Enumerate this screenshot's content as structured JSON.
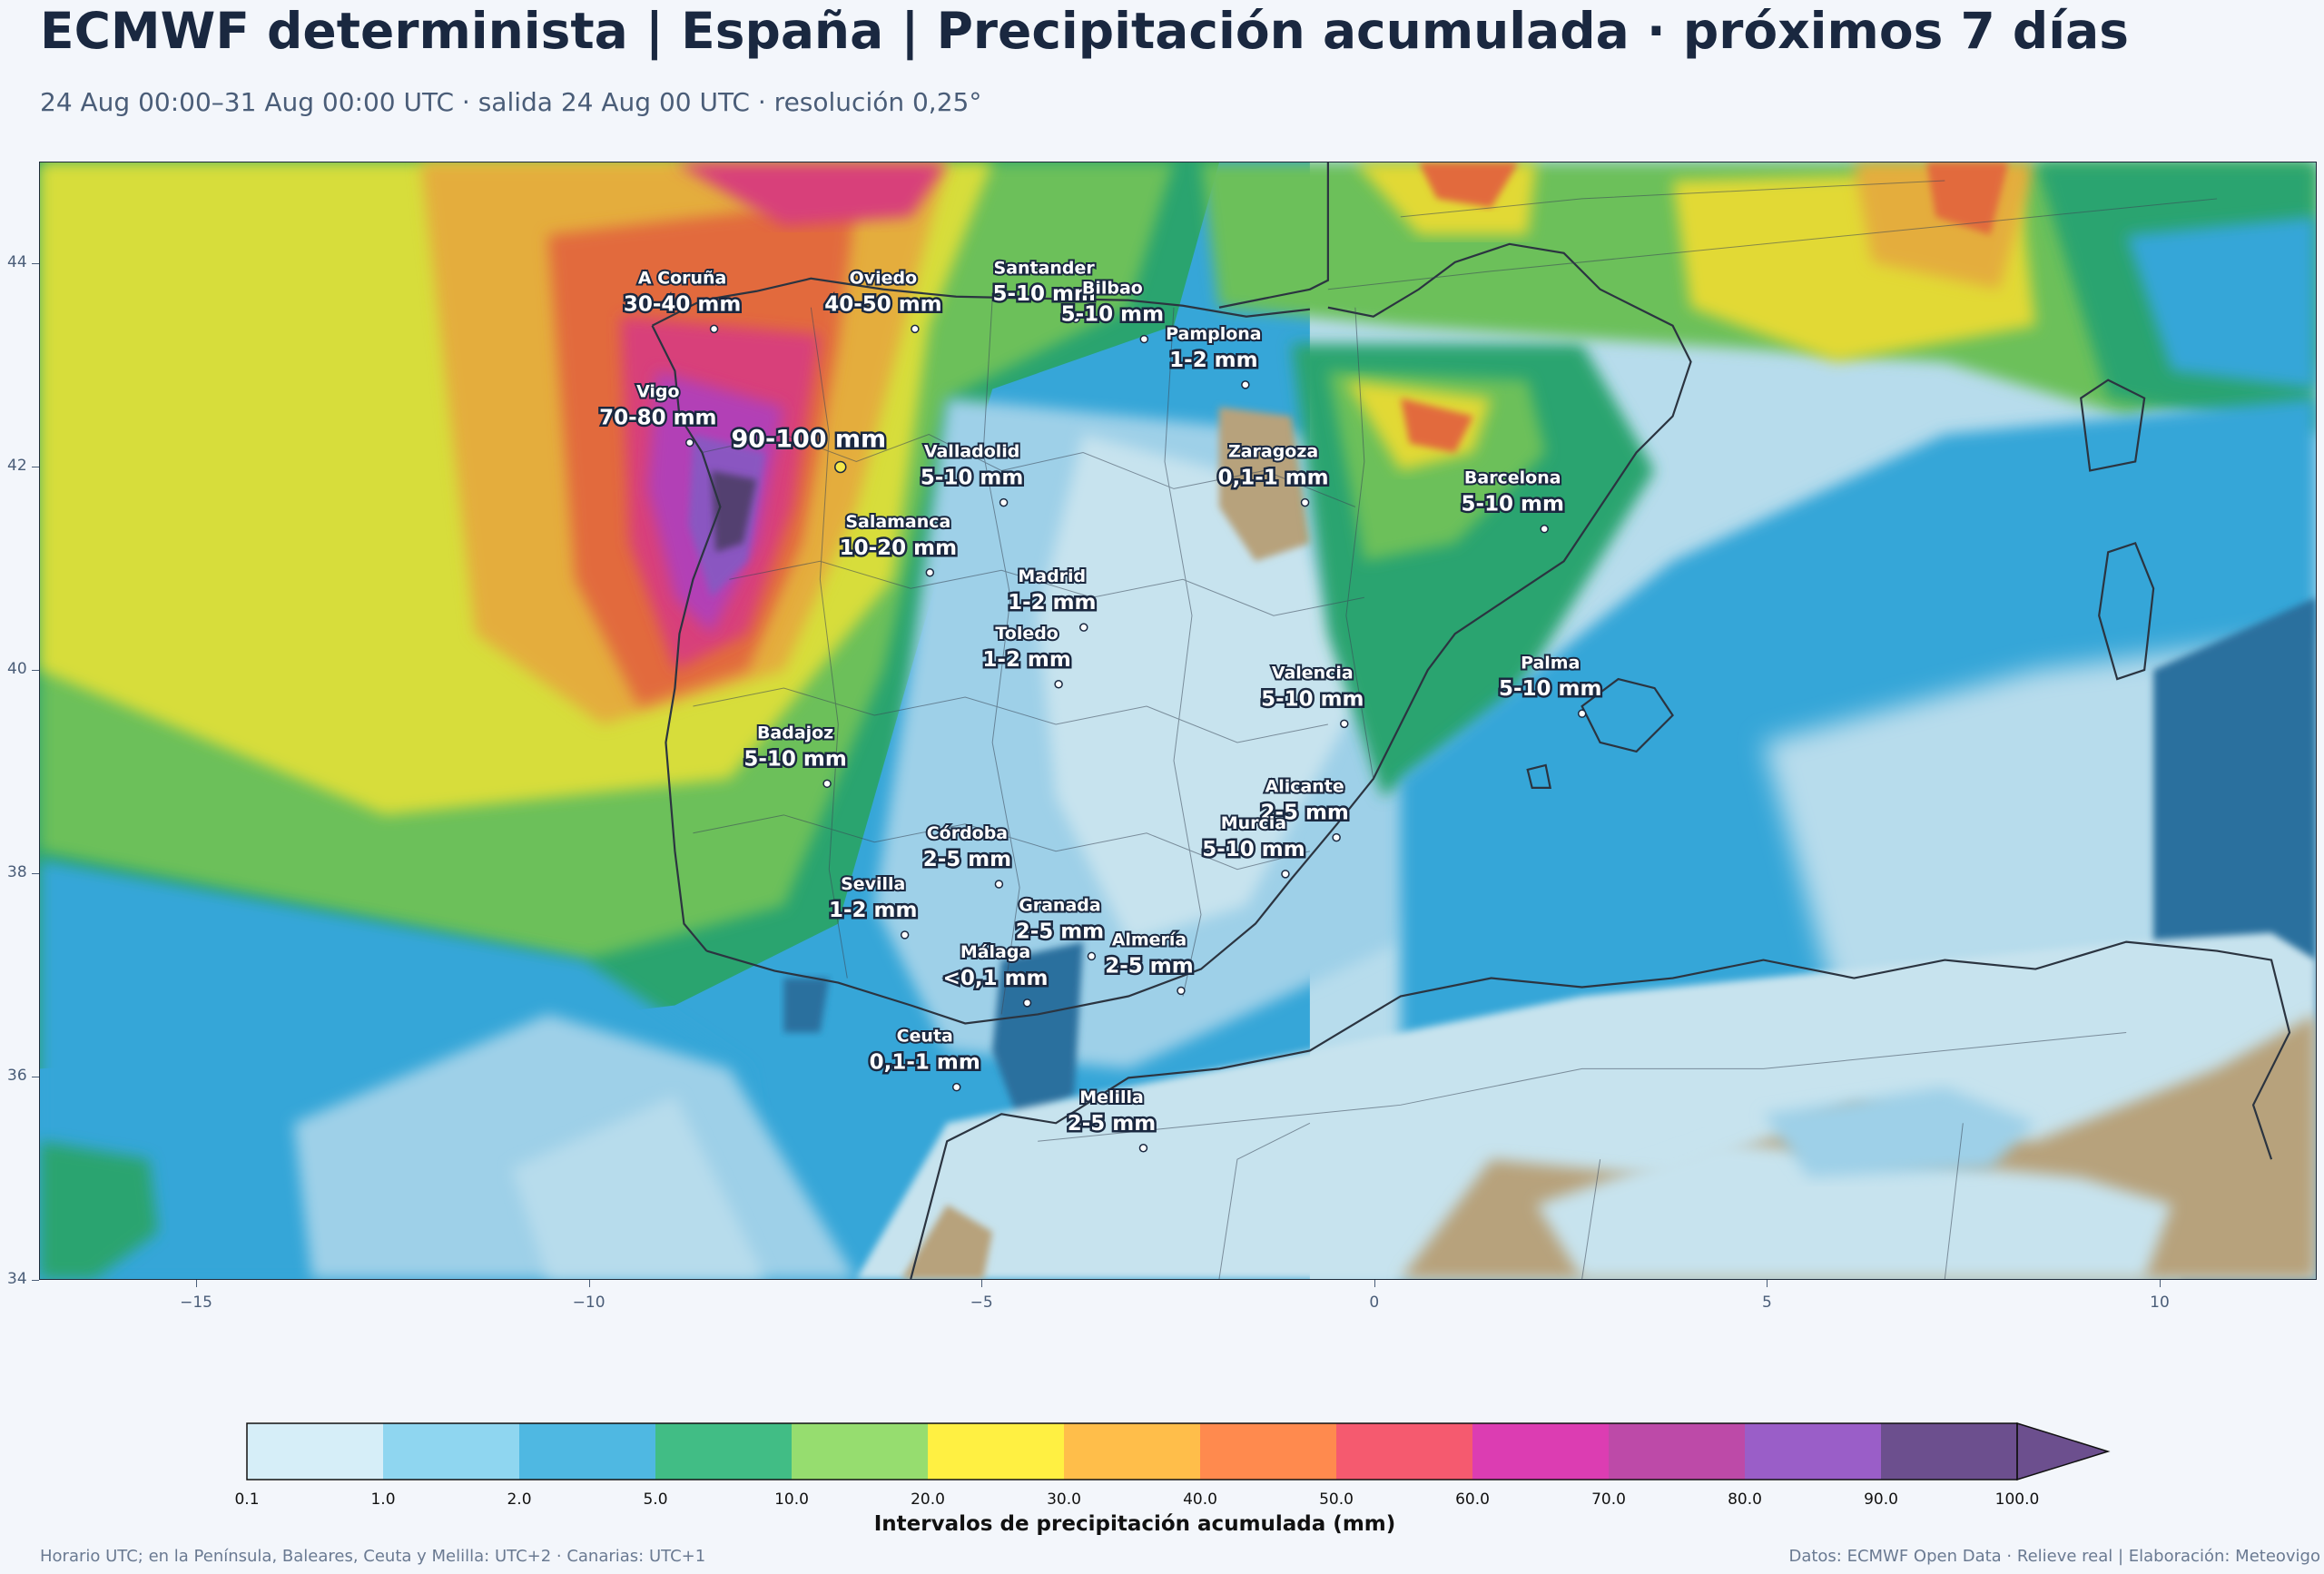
{
  "header": {
    "title": "ECMWF determinista | España | Precipitación acumulada · próximos 7 días",
    "subtitle": "24 Aug 00:00–31 Aug 00:00 UTC · salida 24 Aug 00 UTC · resolución 0,25°"
  },
  "map": {
    "lon_range": [
      -17,
      12
    ],
    "lat_range": [
      34,
      45
    ],
    "x_ticks": [
      "−15",
      "−10",
      "−5",
      "0",
      "5",
      "10"
    ],
    "x_tick_values": [
      -15,
      -10,
      -5,
      0,
      5,
      10
    ],
    "y_ticks": [
      "44",
      "42",
      "40",
      "38",
      "36",
      "34"
    ],
    "y_tick_values": [
      44,
      42,
      40,
      38,
      36,
      34
    ],
    "land_relief_color": "#b9a47c",
    "coast_color": "#2b3440",
    "cities": [
      {
        "name": "A Coruña",
        "value": "30-40 mm",
        "lon": -8.41,
        "lat": 43.36
      },
      {
        "name": "Oviedo",
        "value": "40-50 mm",
        "lon": -5.85,
        "lat": 43.36
      },
      {
        "name": "Santander",
        "value": "5-10 mm",
        "lon": -3.8,
        "lat": 43.46
      },
      {
        "name": "Pamplona",
        "value": "1-2 mm",
        "lon": -1.64,
        "lat": 42.81
      },
      {
        "name": "Bilbao",
        "value": "5-10 mm",
        "lon": -2.93,
        "lat": 43.26
      },
      {
        "name": "Vigo",
        "value": "70-80 mm",
        "lon": -8.72,
        "lat": 42.24
      },
      {
        "name": "",
        "value": "90-100 mm",
        "lon": -6.8,
        "lat": 42.0,
        "max": true
      },
      {
        "name": "Valladolid",
        "value": "5-10 mm",
        "lon": -4.72,
        "lat": 41.65
      },
      {
        "name": "Zaragoza",
        "value": "0,1-1 mm",
        "lon": -0.88,
        "lat": 41.65
      },
      {
        "name": "Barcelona",
        "value": "5-10 mm",
        "lon": 2.17,
        "lat": 41.39
      },
      {
        "name": "Salamanca",
        "value": "10-20 mm",
        "lon": -5.66,
        "lat": 40.96
      },
      {
        "name": "Madrid",
        "value": "1-2 mm",
        "lon": -3.7,
        "lat": 40.42
      },
      {
        "name": "Valencia",
        "value": "5-10 mm",
        "lon": -0.38,
        "lat": 39.47
      },
      {
        "name": "Toledo",
        "value": "1-2 mm",
        "lon": -4.02,
        "lat": 39.86
      },
      {
        "name": "Palma",
        "value": "5-10 mm",
        "lon": 2.65,
        "lat": 39.57
      },
      {
        "name": "Badajoz",
        "value": "5-10 mm",
        "lon": -6.97,
        "lat": 38.88
      },
      {
        "name": "Córdoba",
        "value": "2-5 mm",
        "lon": -4.78,
        "lat": 37.89
      },
      {
        "name": "Alicante",
        "value": "2-5 mm",
        "lon": -0.48,
        "lat": 38.35
      },
      {
        "name": "Murcia",
        "value": "5-10 mm",
        "lon": -1.13,
        "lat": 37.99
      },
      {
        "name": "Granada",
        "value": "2-5 mm",
        "lon": -3.6,
        "lat": 37.18
      },
      {
        "name": "Sevilla",
        "value": "1-2 mm",
        "lon": -5.98,
        "lat": 37.39
      },
      {
        "name": "Almería",
        "value": "2-5 mm",
        "lon": -2.46,
        "lat": 36.84
      },
      {
        "name": "Málaga",
        "value": "<0,1 mm",
        "lon": -4.42,
        "lat": 36.72
      },
      {
        "name": "Ceuta",
        "value": "0,1-1 mm",
        "lon": -5.32,
        "lat": 35.89
      },
      {
        "name": "Melilla",
        "value": "2-5 mm",
        "lon": -2.94,
        "lat": 35.29
      }
    ]
  },
  "colorbar": {
    "title": "Intervalos de precipitación acumulada (mm)",
    "ticks": [
      "0.1",
      "1.0",
      "2.0",
      "5.0",
      "10.0",
      "20.0",
      "30.0",
      "40.0",
      "50.0",
      "60.0",
      "70.0",
      "80.0",
      "90.0",
      "100.0"
    ],
    "colors": [
      "#d6eef8",
      "#8fd6f0",
      "#4fb8e2",
      "#41bd85",
      "#96dd6f",
      "#fff042",
      "#ffbe4a",
      "#ff8a4e",
      "#f55a6f",
      "#dc3db2",
      "#bd4aa8",
      "#9a5ec8",
      "#6c4f8e"
    ],
    "extend_color": "#6c4f8e"
  },
  "footer": {
    "left": "Horario UTC; en la Península, Baleares, Ceuta y Melilla: UTC+2 · Canarias: UTC+1",
    "right": "Datos: ECMWF Open Data · Relieve real | Elaboración: Meteovigo"
  }
}
